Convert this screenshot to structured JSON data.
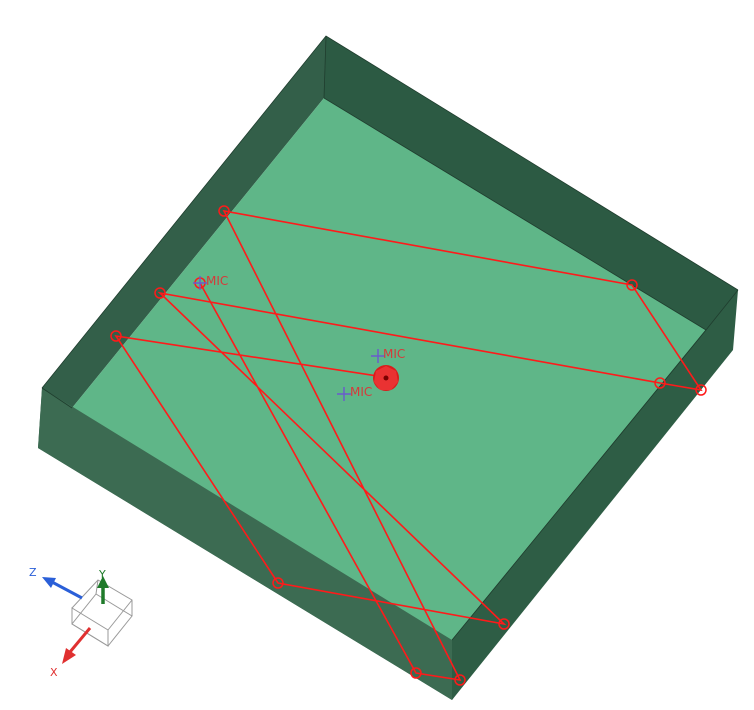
{
  "scene": {
    "description_colors": {
      "background": "#ffffff",
      "floor": "#5fb688",
      "wall_top": "#2c5a43",
      "wall_right": "#325f48",
      "wall_front_left": "#3b6a51",
      "wall_front_right": "#2e5d45",
      "edge": "#1e3a2c",
      "ray": "#ff0000",
      "mic": "#6a5acd",
      "source": "#e21b1b"
    },
    "microphones": [
      {
        "name": "mic-1",
        "label": "MIC"
      },
      {
        "name": "mic-2",
        "label": "MIC"
      },
      {
        "name": "mic-3",
        "label": "MIC"
      }
    ],
    "source": {
      "name": "sound-source"
    }
  },
  "axes": {
    "x_label": "X",
    "y_label": "Y",
    "z_label": "Z",
    "x_color": "#e03030",
    "y_color": "#1f7a2a",
    "z_color": "#2a5fd8"
  }
}
